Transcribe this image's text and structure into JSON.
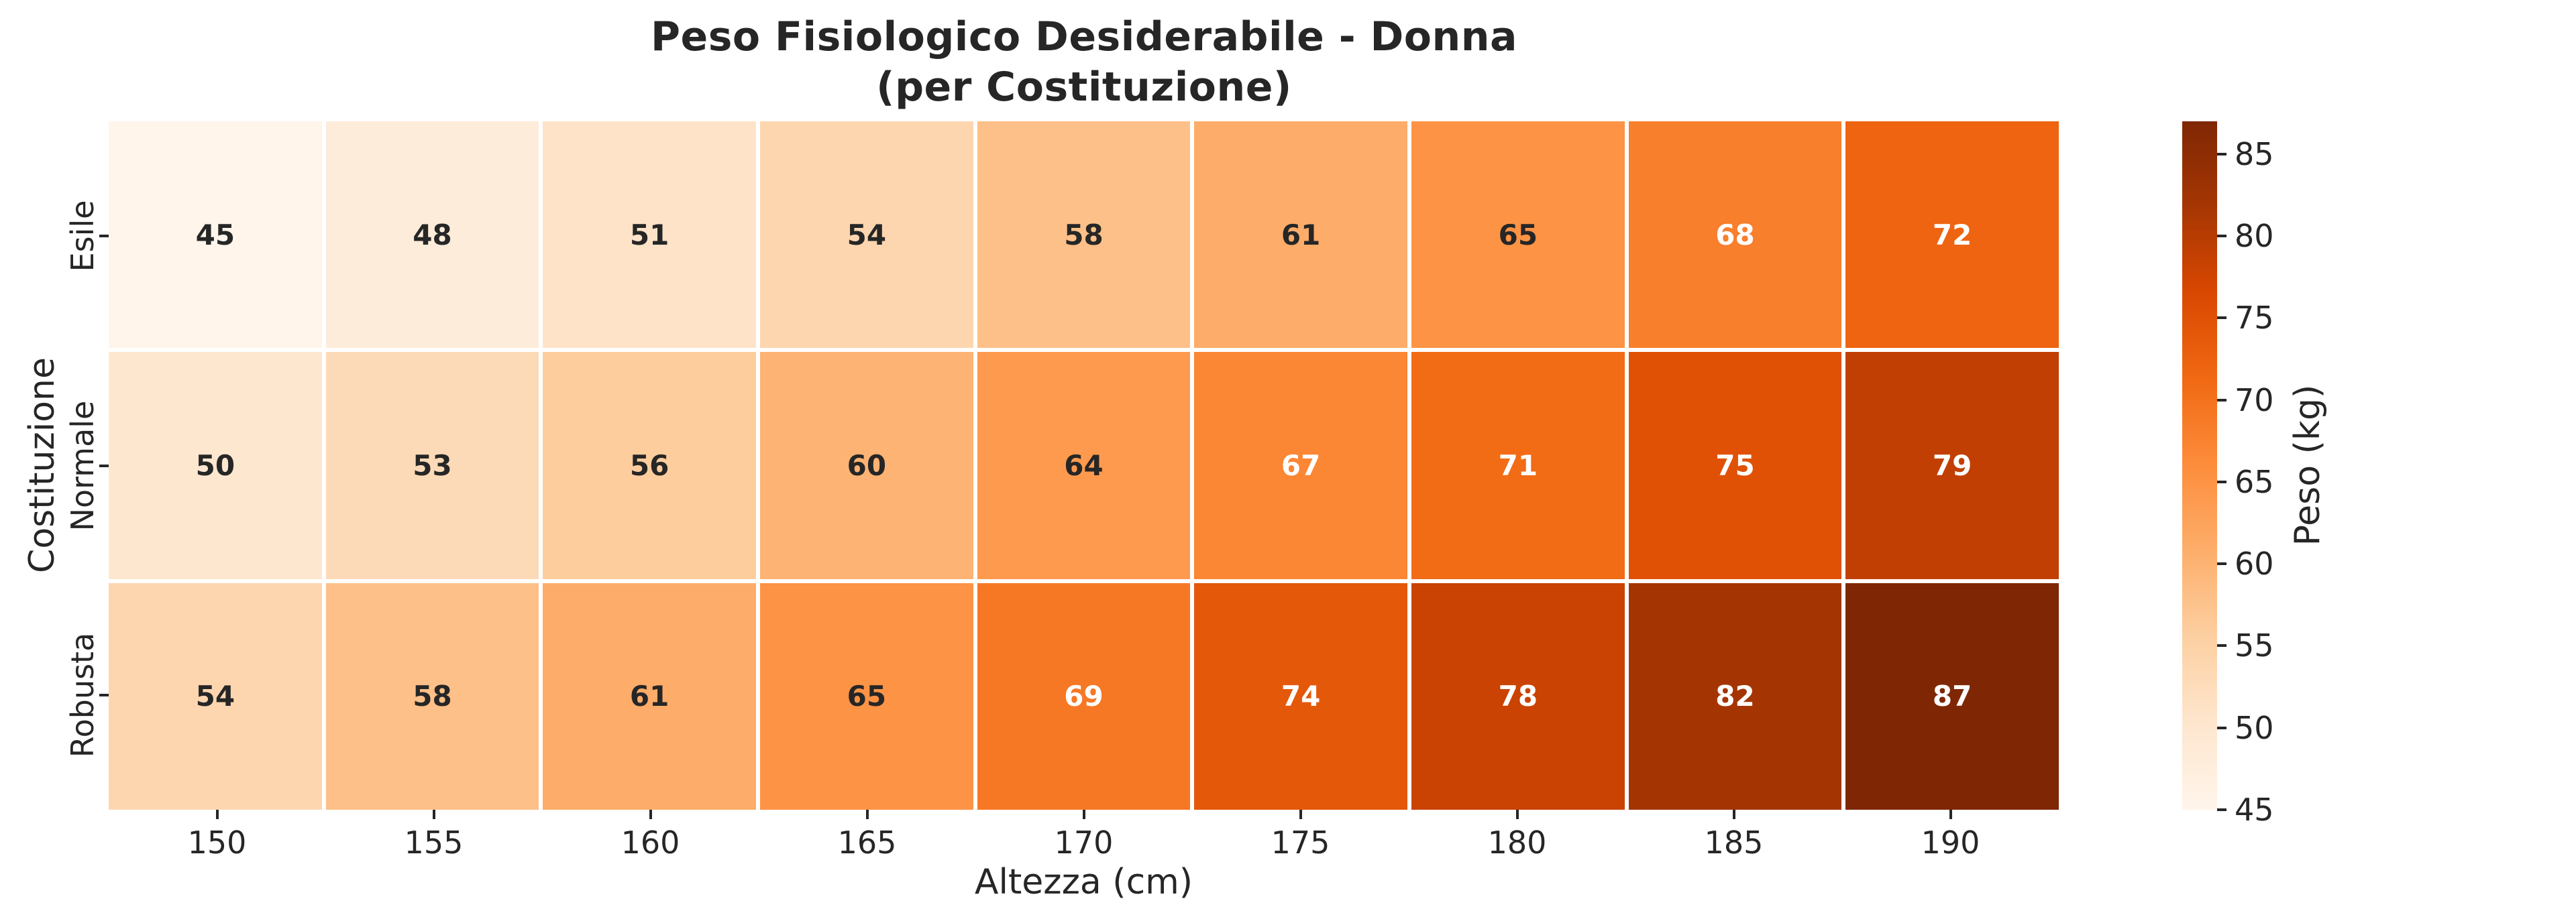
{
  "title": {
    "line1": "Peso Fisiologico Desiderabile - Donna",
    "line2": "(per Costituzione)"
  },
  "chart_data": {
    "type": "heatmap",
    "title": "Peso Fisiologico Desiderabile - Donna (per Costituzione)",
    "xlabel": "Altezza (cm)",
    "ylabel": "Costituzione",
    "x_categories": [
      "150",
      "155",
      "160",
      "165",
      "170",
      "175",
      "180",
      "185",
      "190"
    ],
    "y_categories": [
      "Esile",
      "Normale",
      "Robusta"
    ],
    "series": [
      {
        "name": "Esile",
        "values": [
          45,
          48,
          51,
          54,
          58,
          61,
          65,
          68,
          72
        ]
      },
      {
        "name": "Normale",
        "values": [
          50,
          53,
          56,
          60,
          64,
          67,
          71,
          75,
          79
        ]
      },
      {
        "name": "Robusta",
        "values": [
          54,
          58,
          61,
          65,
          69,
          74,
          78,
          82,
          87
        ]
      }
    ],
    "colorbar": {
      "label": "Peso (kg)",
      "ticks": [
        45,
        50,
        55,
        60,
        65,
        70,
        75,
        80,
        85
      ],
      "vmin": 45,
      "vmax": 87
    },
    "colormap": {
      "name": "Oranges",
      "stops": [
        "#fff5eb",
        "#fee6ce",
        "#fdd0a2",
        "#fdae6b",
        "#fd8d3c",
        "#f16913",
        "#d94801",
        "#a63603",
        "#7f2704"
      ]
    },
    "annotation_text_colors": {
      "on_light": "#262626",
      "on_dark": "#ffffff"
    },
    "axis_text_color": "#262626",
    "background": "#ffffff",
    "grid_line_color": "#ffffff",
    "legend_position": "right-colorbar",
    "grid": "off"
  }
}
